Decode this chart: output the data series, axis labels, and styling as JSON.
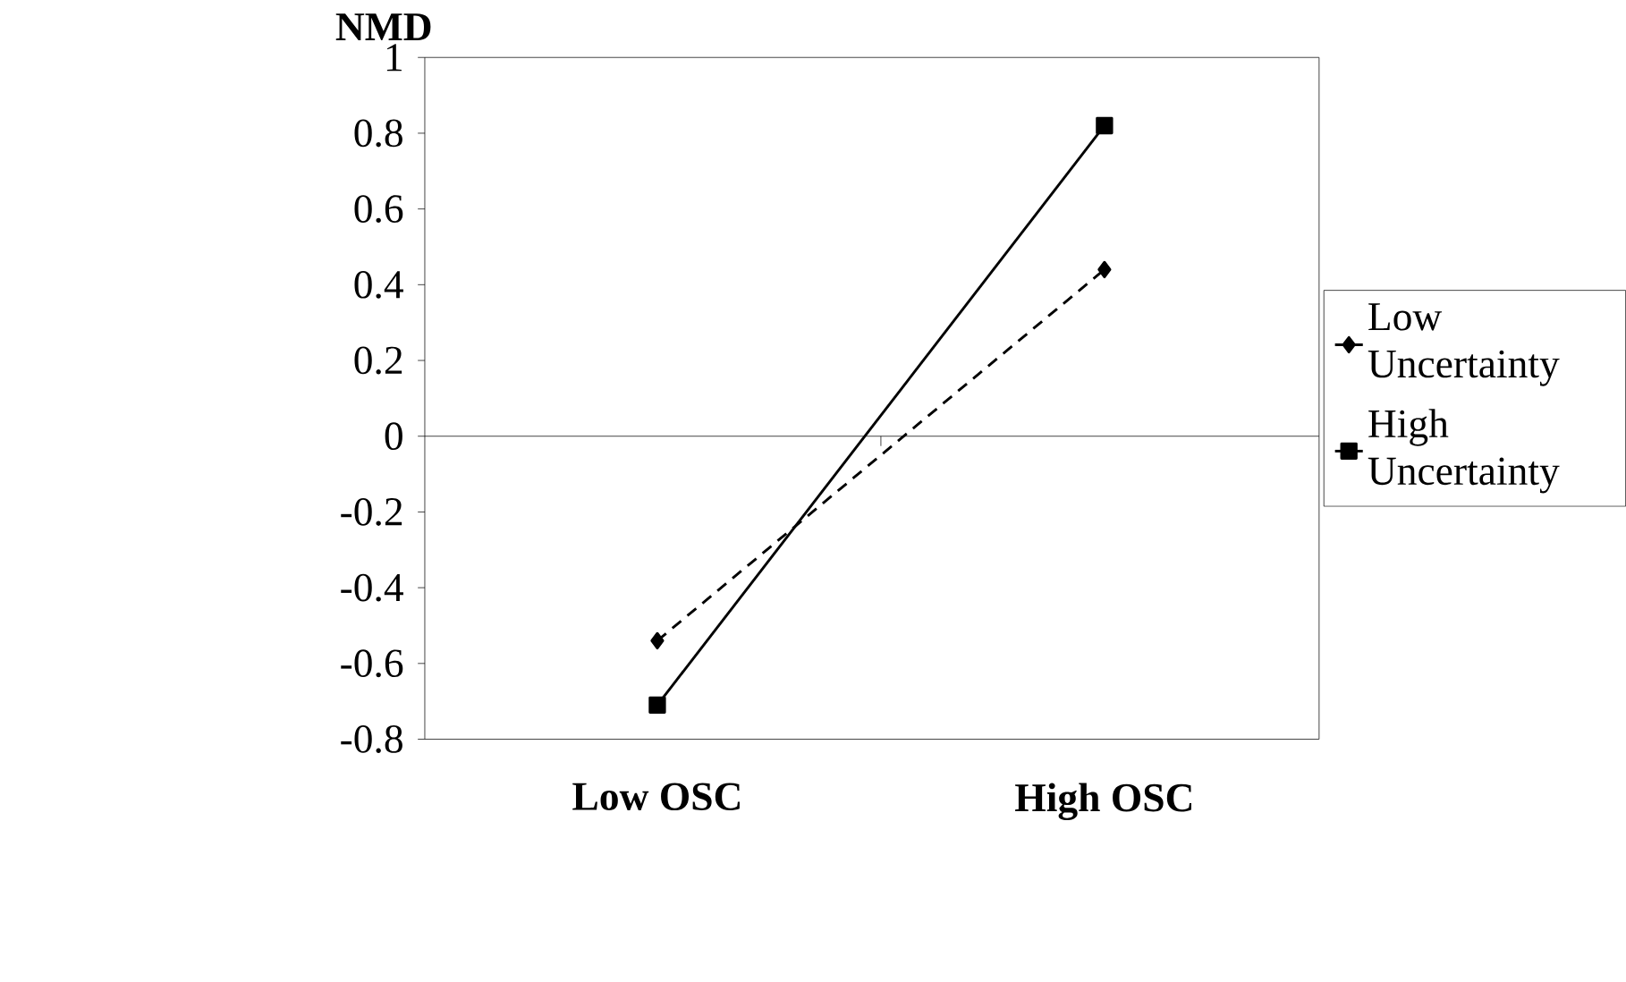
{
  "chart_data": {
    "type": "line",
    "ylabel": "NMD",
    "categories": [
      "Low OSC",
      "High OSC"
    ],
    "series": [
      {
        "name": "Low Uncertainty",
        "color": "#000000",
        "values": [
          -0.54,
          0.44
        ],
        "marker": "diamond",
        "line_style": "dashed"
      },
      {
        "name": "High Uncertainty",
        "color": "#000000",
        "values": [
          -0.71,
          0.82
        ],
        "marker": "square",
        "line_style": "solid"
      }
    ],
    "ylim": [
      -0.8,
      1
    ],
    "yticks": [
      -0.8,
      -0.6,
      -0.4,
      -0.2,
      0,
      0.2,
      0.4,
      0.6,
      0.8,
      1
    ],
    "ref_lines": [
      {
        "axis": "y",
        "value": 0,
        "color": "#000000"
      }
    ],
    "grid": false,
    "legend": "right"
  }
}
